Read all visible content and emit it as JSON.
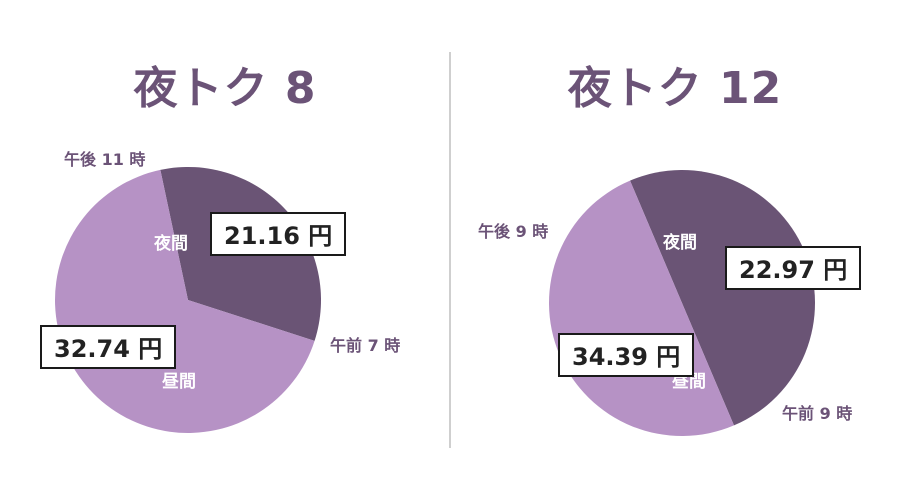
{
  "colors": {
    "night": "#6a5475",
    "day": "#b692c5",
    "title": "#6b5377"
  },
  "chart_data": [
    {
      "type": "pie",
      "title": "夜トク 8",
      "slices": [
        {
          "label": "夜間",
          "price_label": "21.16 円",
          "value": 21.16,
          "share_pct": 33.3
        },
        {
          "label": "昼間",
          "price_label": "32.74 円",
          "value": 32.74,
          "share_pct": 66.7
        }
      ],
      "boundary_labels": {
        "night_start": "午後 11 時",
        "night_end": "午前 7 時"
      }
    },
    {
      "type": "pie",
      "title": "夜トク 12",
      "slices": [
        {
          "label": "夜間",
          "price_label": "22.97 円",
          "value": 22.97,
          "share_pct": 50
        },
        {
          "label": "昼間",
          "price_label": "34.39 円",
          "value": 34.39,
          "share_pct": 50
        }
      ],
      "boundary_labels": {
        "night_start": "午後 9 時",
        "night_end": "午前 9 時"
      }
    }
  ]
}
